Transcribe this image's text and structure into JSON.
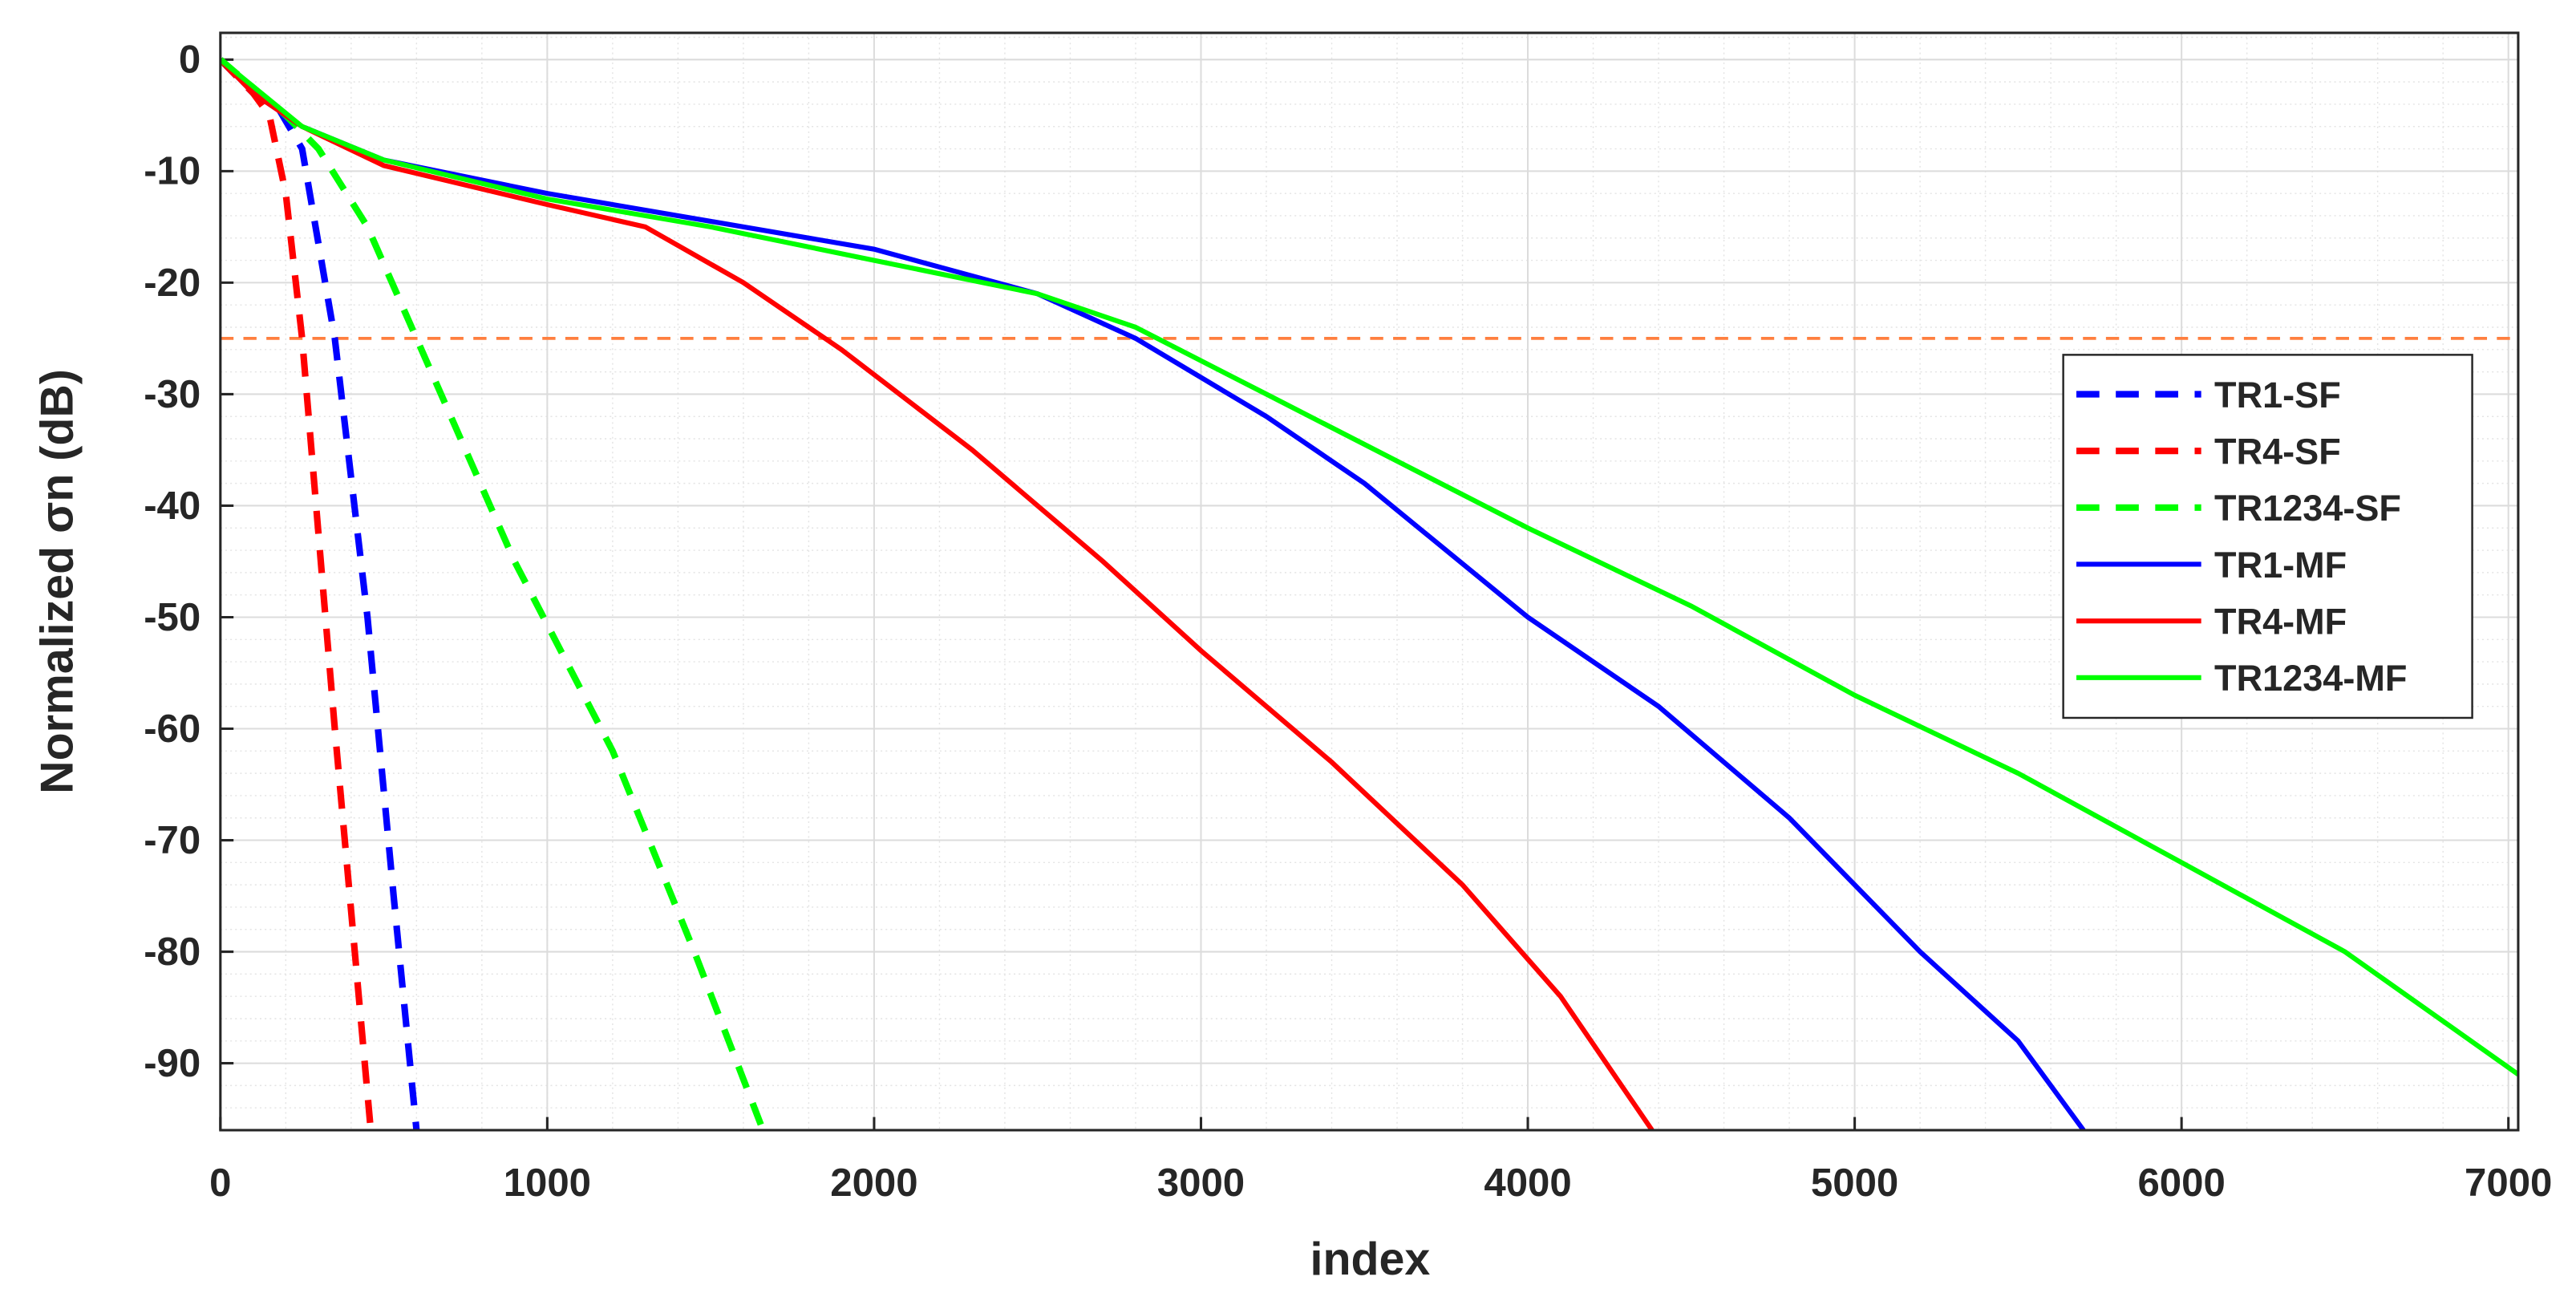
{
  "chart_data": {
    "type": "line",
    "xlabel": "index",
    "ylabel": "Normalized σn (dB)",
    "xlim": [
      0,
      7030
    ],
    "ylim": [
      -96,
      2.4
    ],
    "xticks": [
      0,
      1000,
      2000,
      3000,
      4000,
      5000,
      6000,
      7000
    ],
    "yticks": [
      0,
      -10,
      -20,
      -30,
      -40,
      -50,
      -60,
      -70,
      -80,
      -90
    ],
    "grid": true,
    "minor_grid": true,
    "legend_position": "right",
    "hline": {
      "value": -25,
      "color": "#ff7f3f"
    },
    "series": [
      {
        "name": "TR1-SF",
        "color": "#0000ff",
        "dashed": true,
        "x": [
          0,
          100,
          170,
          250,
          350,
          450,
          530,
          600
        ],
        "values": [
          0,
          -3,
          -4,
          -8,
          -25,
          -50,
          -75,
          -96
        ]
      },
      {
        "name": "TR4-SF",
        "color": "#ff0000",
        "dashed": true,
        "x": [
          0,
          100,
          150,
          200,
          250,
          350,
          460
        ],
        "values": [
          0,
          -3,
          -5,
          -12,
          -25,
          -60,
          -96
        ]
      },
      {
        "name": "TR1234-SF",
        "color": "#00ff00",
        "dashed": true,
        "x": [
          0,
          200,
          300,
          450,
          600,
          900,
          1200,
          1450,
          1660
        ],
        "values": [
          0,
          -5,
          -8,
          -15,
          -25,
          -45,
          -62,
          -80,
          -96
        ]
      },
      {
        "name": "TR1-MF",
        "color": "#0000ff",
        "dashed": false,
        "x": [
          0,
          100,
          250,
          500,
          1000,
          1500,
          2000,
          2500,
          2800,
          3200,
          3500,
          4000,
          4400,
          4800,
          5200,
          5500,
          5700
        ],
        "values": [
          0,
          -3,
          -6,
          -9,
          -12,
          -14.5,
          -17,
          -21,
          -25,
          -32,
          -38,
          -50,
          -58,
          -68,
          -80,
          -88,
          -96
        ]
      },
      {
        "name": "TR4-MF",
        "color": "#ff0000",
        "dashed": false,
        "x": [
          0,
          100,
          250,
          500,
          1000,
          1300,
          1600,
          1900,
          2300,
          2700,
          3000,
          3400,
          3800,
          4100,
          4380
        ],
        "values": [
          0,
          -3,
          -6,
          -9.5,
          -13,
          -15,
          -20,
          -26,
          -35,
          -45,
          -53,
          -63,
          -74,
          -84,
          -96
        ]
      },
      {
        "name": "TR1234-MF",
        "color": "#00ff00",
        "dashed": false,
        "x": [
          0,
          250,
          500,
          1000,
          1500,
          2000,
          2500,
          2800,
          3200,
          3600,
          4000,
          4500,
          5000,
          5500,
          6000,
          6500,
          7030
        ],
        "values": [
          0,
          -6,
          -9,
          -12.5,
          -15,
          -18,
          -21,
          -24,
          -30,
          -36,
          -42,
          -49,
          -57,
          -64,
          -72,
          -80,
          -91
        ]
      }
    ]
  }
}
